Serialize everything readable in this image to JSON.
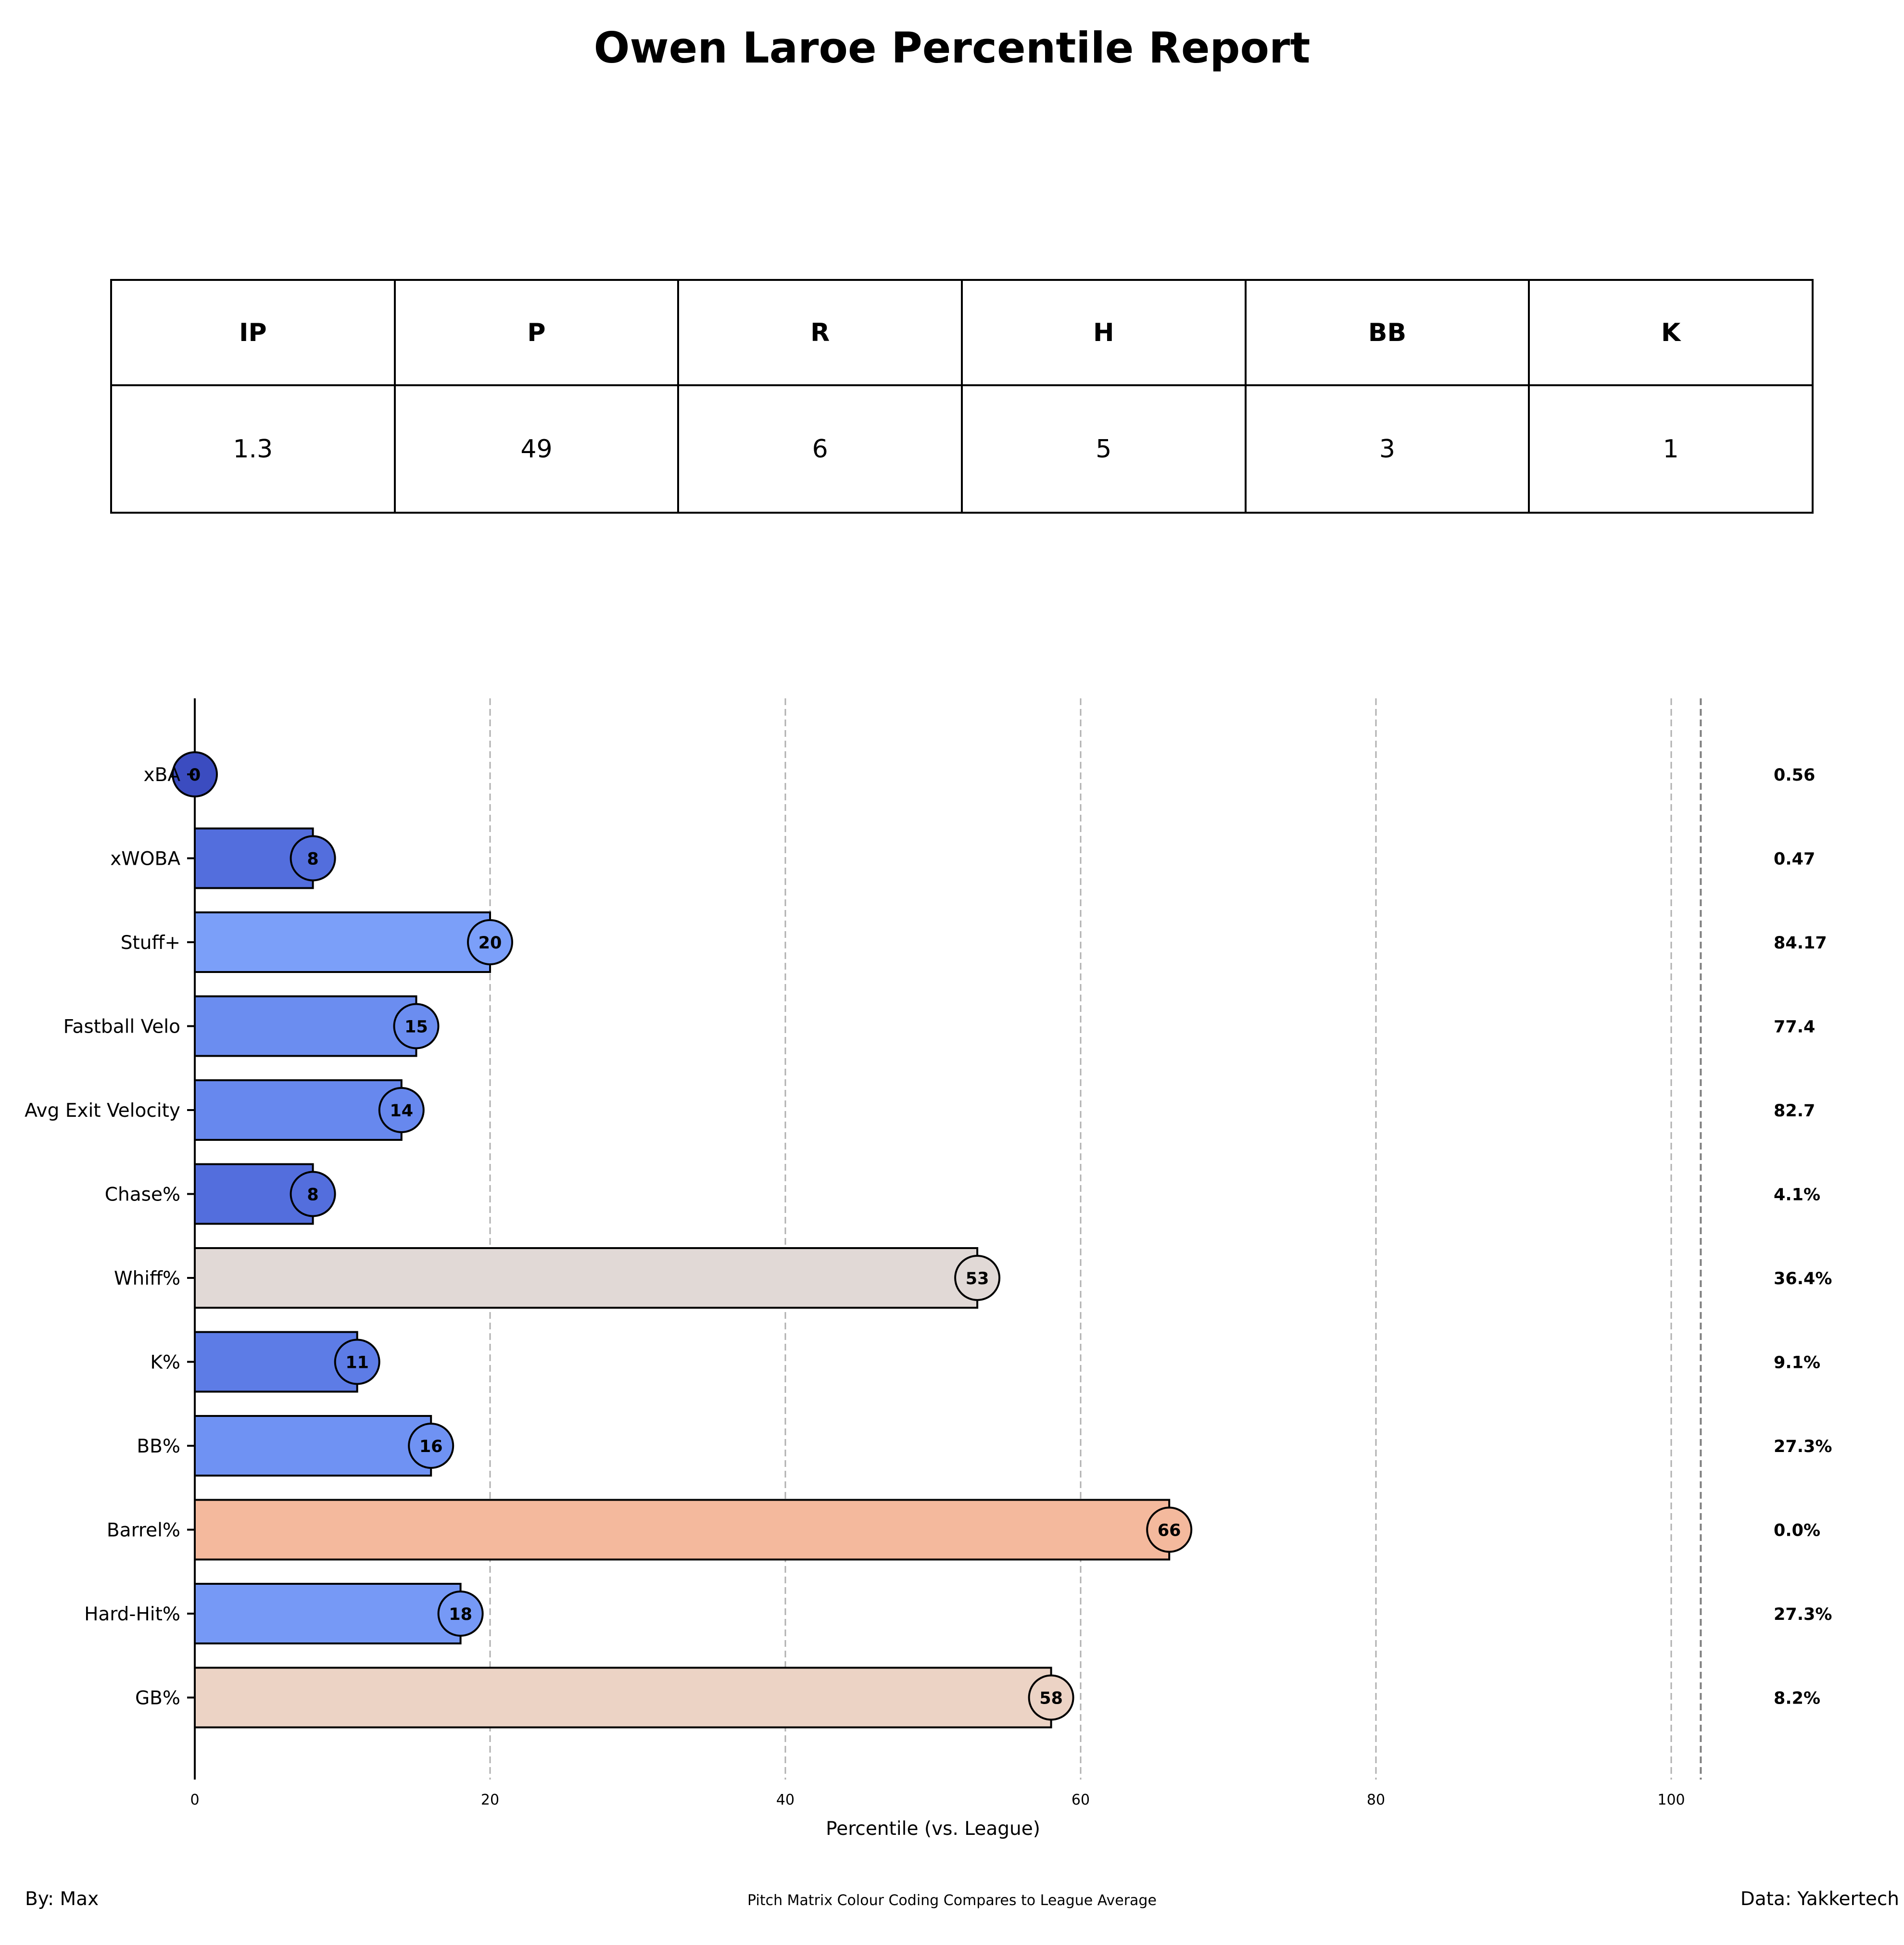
{
  "title": "Owen Laroe Percentile Report",
  "stats_table": {
    "headers": [
      "IP",
      "P",
      "R",
      "H",
      "BB",
      "K"
    ],
    "values": [
      "1.3",
      "49",
      "6",
      "5",
      "3",
      "1"
    ]
  },
  "chart_data": {
    "type": "bar",
    "orientation": "horizontal",
    "categories": [
      "xBA",
      "xWOBA",
      "Stuff+",
      "Fastball Velo",
      "Avg Exit Velocity",
      "Chase%",
      "Whiff%",
      "K%",
      "BB%",
      "Barrel%",
      "Hard-Hit%",
      "GB%"
    ],
    "values": [
      0,
      8,
      20,
      15,
      14,
      8,
      53,
      11,
      16,
      66,
      18,
      58
    ],
    "value_labels": [
      "0",
      "8",
      "20",
      "15",
      "14",
      "8",
      "53",
      "11",
      "16",
      "66",
      "18",
      "58"
    ],
    "raw_values": [
      "0.56",
      "0.47",
      "84.17",
      "77.4",
      "82.7",
      "4.1%",
      "36.4%",
      "9.1%",
      "27.3%",
      "0.0%",
      "27.3%",
      "8.2%"
    ],
    "colors": [
      "#3b4cc0",
      "#536edd",
      "#7b9ff9",
      "#6b8df0",
      "#6788ee",
      "#536edd",
      "#e1d9d6",
      "#5d7ce6",
      "#6f92f3",
      "#f4b99d",
      "#7699f6",
      "#ecd3c5"
    ],
    "xlabel": "Percentile (vs. League)",
    "ylabel": "",
    "xlim": [
      0,
      108
    ],
    "xticks": [
      0,
      20,
      40,
      60,
      80,
      100
    ],
    "reference_line": 102,
    "grid": "vertical dashed"
  },
  "footer": {
    "left": "By: Max",
    "center": "Pitch Matrix Colour Coding Compares to League Average",
    "right": "Data: Yakkertech"
  }
}
